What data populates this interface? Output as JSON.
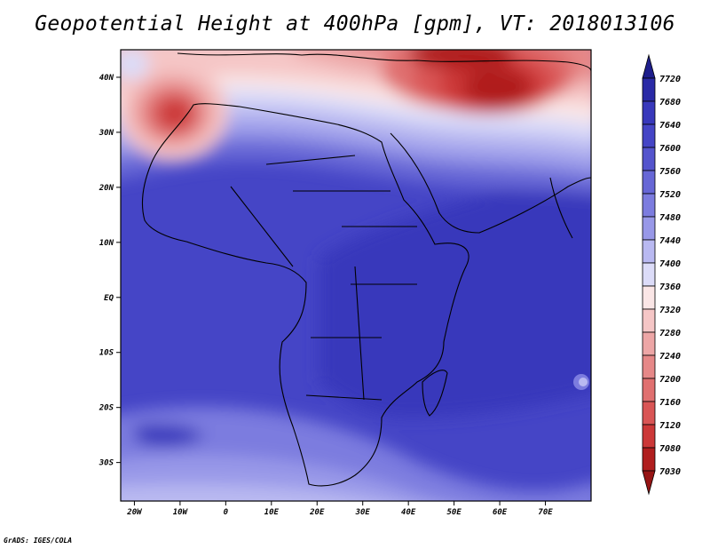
{
  "title": "Geopotential Height at 400hPa [gpm], VT: 2018013106",
  "credit": "GrADS: IGES/COLA",
  "map": {
    "lon_range": [
      -23,
      80
    ],
    "lat_range": [
      -37,
      45
    ],
    "x_ticks": [
      "20W",
      "10W",
      "0",
      "10E",
      "20E",
      "30E",
      "40E",
      "50E",
      "60E",
      "70E"
    ],
    "x_tick_values": [
      -20,
      -10,
      0,
      10,
      20,
      30,
      40,
      50,
      60,
      70
    ],
    "y_ticks": [
      "40N",
      "30N",
      "20N",
      "10N",
      "EQ",
      "10S",
      "20S",
      "30S"
    ],
    "y_tick_values": [
      40,
      30,
      20,
      10,
      0,
      -10,
      -20,
      -30
    ]
  },
  "colorbar": {
    "levels": [
      "7720",
      "7680",
      "7640",
      "7600",
      "7560",
      "7520",
      "7480",
      "7440",
      "7400",
      "7360",
      "7320",
      "7280",
      "7240",
      "7200",
      "7160",
      "7120",
      "7080",
      "7030"
    ],
    "colors": [
      "#1e1e8c",
      "#2a2aa6",
      "#3838bb",
      "#4545c6",
      "#5454cd",
      "#6767d6",
      "#7c7cdf",
      "#9898e8",
      "#b9b9f1",
      "#dcdcf8",
      "#fae6e6",
      "#f5c6c6",
      "#eda6a6",
      "#e68888",
      "#e07070",
      "#d95555",
      "#cc3838",
      "#b01e1e",
      "#961414"
    ]
  }
}
